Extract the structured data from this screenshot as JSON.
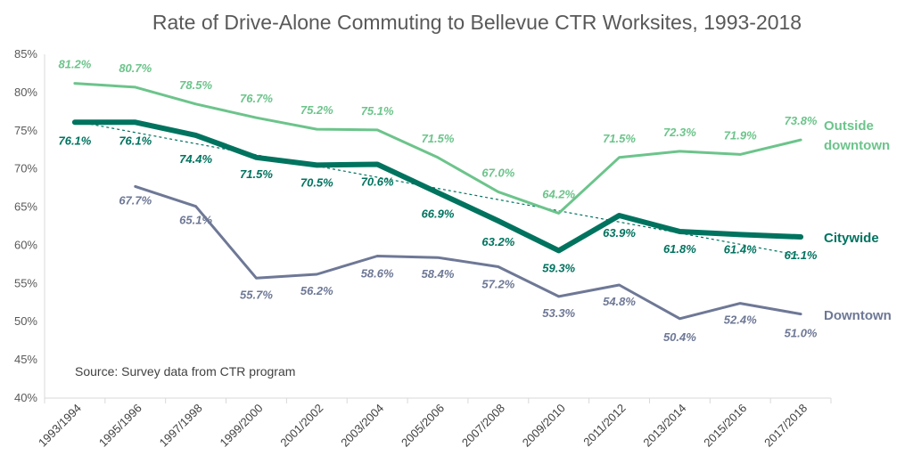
{
  "chart_data": {
    "type": "line",
    "title": "Rate of Drive-Alone Commuting to Bellevue CTR Worksites, 1993-2018",
    "categories": [
      "1993/1994",
      "1995/1996",
      "1997/1998",
      "1999/2000",
      "2001/2002",
      "2003/2004",
      "2005/2006",
      "2007/2008",
      "2009/2010",
      "2011/2012",
      "2013/2014",
      "2015/2016",
      "2017/2018"
    ],
    "ylim": [
      40,
      85
    ],
    "yticks": [
      "40%",
      "45%",
      "50%",
      "55%",
      "60%",
      "65%",
      "70%",
      "75%",
      "80%",
      "85%"
    ],
    "grid": false,
    "annotation": "Source: Survey data from CTR program",
    "series": [
      {
        "name": "Outside downtown",
        "color": "#6cc48b",
        "values": [
          81.2,
          80.7,
          78.5,
          76.7,
          75.2,
          75.1,
          71.5,
          67.0,
          64.2,
          71.5,
          72.3,
          71.9,
          73.8
        ],
        "labels": [
          "81.2%",
          "80.7%",
          "78.5%",
          "76.7%",
          "75.2%",
          "75.1%",
          "71.5%",
          "67.0%",
          "64.2%",
          "71.5%",
          "72.3%",
          "71.9%",
          "73.8%"
        ]
      },
      {
        "name": "Citywide",
        "color": "#00735f",
        "values": [
          76.1,
          76.1,
          74.4,
          71.5,
          70.5,
          70.6,
          66.9,
          63.2,
          59.3,
          63.9,
          61.8,
          61.4,
          61.1
        ],
        "labels": [
          "76.1%",
          "76.1%",
          "74.4%",
          "71.5%",
          "70.5%",
          "70.6%",
          "66.9%",
          "63.2%",
          "59.3%",
          "63.9%",
          "61.8%",
          "61.4%",
          "61.1%"
        ],
        "trendline": true
      },
      {
        "name": "Downtown",
        "color": "#6e7896",
        "values": [
          null,
          67.7,
          65.1,
          55.7,
          56.2,
          58.6,
          58.4,
          57.2,
          53.3,
          54.8,
          50.4,
          52.4,
          51.0
        ],
        "labels": [
          "",
          "67.7%",
          "65.1%",
          "55.7%",
          "56.2%",
          "58.6%",
          "58.4%",
          "57.2%",
          "53.3%",
          "54.8%",
          "50.4%",
          "52.4%",
          "51.0%"
        ]
      }
    ],
    "series_labels": {
      "outside_line1": "Outside",
      "outside_line2": "downtown",
      "citywide": "Citywide",
      "downtown": "Downtown"
    }
  }
}
